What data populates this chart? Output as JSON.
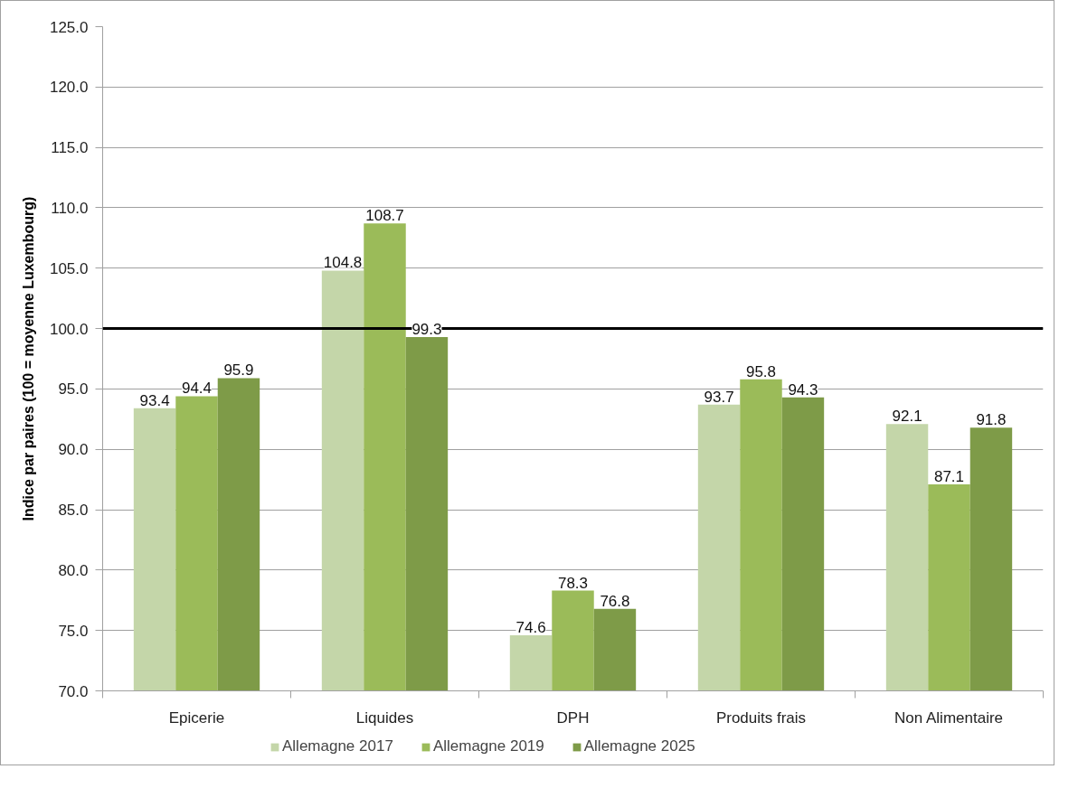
{
  "chart_data": {
    "type": "bar",
    "ylabel": "Indice par paires (100 = moyenne Luxembourg)",
    "categories": [
      "Epicerie",
      "Liquides",
      "DPH",
      "Produits frais",
      "Non Alimentaire"
    ],
    "series": [
      {
        "name": "Allemagne 2017",
        "color": "#c4d6a9",
        "values": [
          93.4,
          104.8,
          74.6,
          93.7,
          92.1
        ]
      },
      {
        "name": "Allemagne 2019",
        "color": "#9bbb59",
        "values": [
          94.4,
          108.7,
          78.3,
          95.8,
          87.1
        ]
      },
      {
        "name": "Allemagne 2025",
        "color": "#7e9b48",
        "values": [
          95.9,
          99.3,
          76.8,
          94.3,
          91.8
        ]
      }
    ],
    "ylim": [
      70,
      125
    ],
    "yticks": [
      {
        "value": 70,
        "label": "70.0"
      },
      {
        "value": 75,
        "label": "75.0"
      },
      {
        "value": 80,
        "label": "80.0"
      },
      {
        "value": 85,
        "label": "85.0"
      },
      {
        "value": 90,
        "label": "90.0"
      },
      {
        "value": 95,
        "label": "95.0"
      },
      {
        "value": 100,
        "label": "100.0"
      },
      {
        "value": 105,
        "label": "105.0"
      },
      {
        "value": 110,
        "label": "110.0"
      },
      {
        "value": 115,
        "label": "115.0"
      },
      {
        "value": 120,
        "label": "120.0"
      },
      {
        "value": 125,
        "label": "125.0"
      }
    ],
    "grid": "y",
    "legend": "bottom",
    "data_labels": true,
    "ref_lines": [
      {
        "axis": "y",
        "value": 100,
        "color": "#000000"
      }
    ]
  }
}
